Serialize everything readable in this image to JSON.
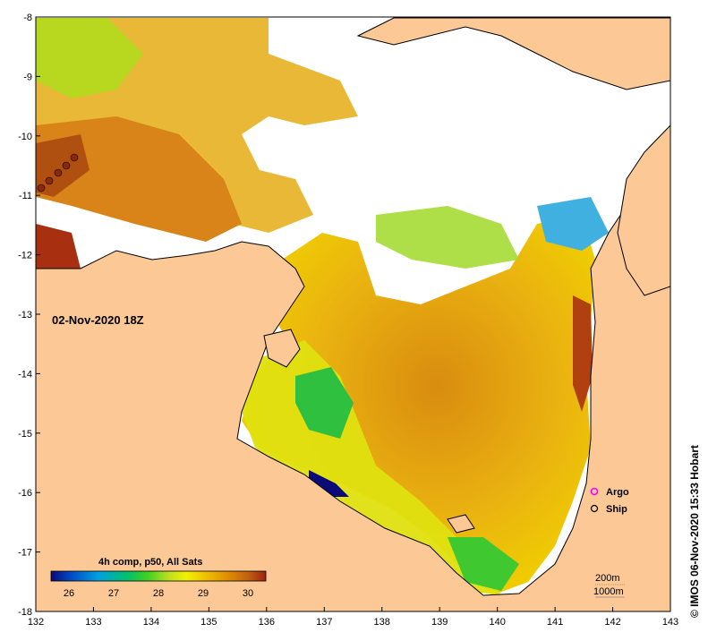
{
  "map": {
    "timestamp": "02-Nov-2020 18Z",
    "credit": "© IMOS 06-Nov-2020 15:33 Hobart",
    "lon_ticks": [
      132,
      133,
      134,
      135,
      136,
      137,
      138,
      139,
      140,
      141,
      142,
      143
    ],
    "lat_ticks": [
      -8,
      -9,
      -10,
      -11,
      -12,
      -13,
      -14,
      -15,
      -16,
      -17,
      -18
    ],
    "colors": {
      "land": "#fbc896",
      "cloud": "#ffffff",
      "coast": "#000000"
    }
  },
  "colorbar": {
    "title": "4h comp, p50, All Sats",
    "ticks": [
      "26",
      "27",
      "28",
      "29",
      "30"
    ],
    "range": [
      25.6,
      30.4
    ],
    "stops": [
      "#0a0a78",
      "#0050c8",
      "#00a0e0",
      "#00c070",
      "#40d020",
      "#c0e020",
      "#f0f000",
      "#f0c000",
      "#e09000",
      "#c06010",
      "#a02010"
    ]
  },
  "legend": {
    "argo_label": "Argo",
    "ship_label": "Ship",
    "argo_color": "#ff00ff",
    "ship_color": "#000000"
  },
  "depth_contours": {
    "label_200": "200m",
    "label_1000": "1000m"
  }
}
